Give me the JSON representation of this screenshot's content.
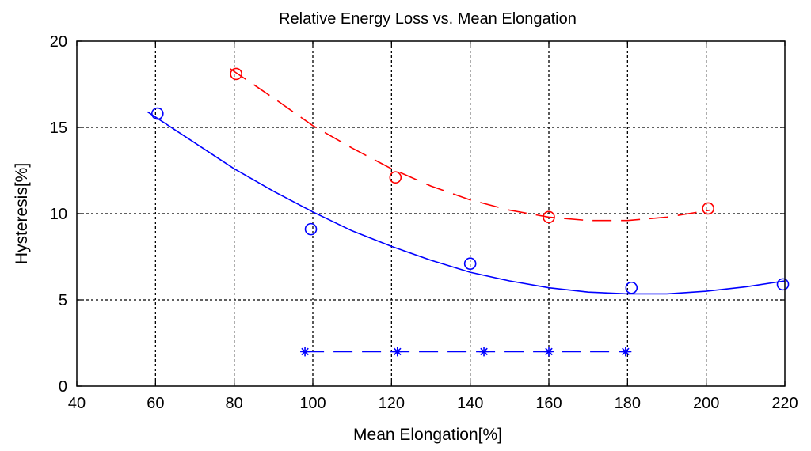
{
  "chart_data": {
    "type": "line",
    "title": "Relative Energy Loss vs. Mean Elongation",
    "xlabel": "Mean Elongation[%]",
    "ylabel": "Hysteresis[%]",
    "xlim": [
      40,
      220
    ],
    "ylim": [
      0,
      20
    ],
    "xticks": [
      40,
      60,
      80,
      100,
      120,
      140,
      160,
      180,
      200,
      220
    ],
    "yticks": [
      0,
      5,
      10,
      15,
      20
    ],
    "grid": true,
    "series": [
      {
        "name": "blue-markers",
        "color": "#0000ff",
        "marker": "circle",
        "points": [
          [
            60.5,
            15.8
          ],
          [
            99.5,
            9.1
          ],
          [
            140,
            7.1
          ],
          [
            181,
            5.7
          ],
          [
            219.5,
            5.9
          ]
        ]
      },
      {
        "name": "blue-fit",
        "color": "#0000ff",
        "style": "solid",
        "points": [
          [
            58,
            15.9
          ],
          [
            70,
            14.1
          ],
          [
            80,
            12.6
          ],
          [
            90,
            11.3
          ],
          [
            100,
            10.1
          ],
          [
            110,
            9.0
          ],
          [
            120,
            8.1
          ],
          [
            130,
            7.3
          ],
          [
            140,
            6.6
          ],
          [
            150,
            6.1
          ],
          [
            160,
            5.7
          ],
          [
            170,
            5.45
          ],
          [
            180,
            5.35
          ],
          [
            190,
            5.35
          ],
          [
            200,
            5.5
          ],
          [
            210,
            5.75
          ],
          [
            220,
            6.1
          ]
        ]
      },
      {
        "name": "red-markers",
        "color": "#ff0000",
        "marker": "circle",
        "points": [
          [
            80.5,
            18.1
          ],
          [
            121,
            12.1
          ],
          [
            160,
            9.8
          ],
          [
            200.5,
            10.3
          ]
        ]
      },
      {
        "name": "red-fit",
        "color": "#ff0000",
        "style": "dashed",
        "points": [
          [
            79,
            18.4
          ],
          [
            90,
            16.7
          ],
          [
            100,
            15.1
          ],
          [
            110,
            13.8
          ],
          [
            120,
            12.6
          ],
          [
            130,
            11.6
          ],
          [
            140,
            10.8
          ],
          [
            150,
            10.2
          ],
          [
            160,
            9.8
          ],
          [
            170,
            9.6
          ],
          [
            180,
            9.6
          ],
          [
            190,
            9.8
          ],
          [
            201,
            10.2
          ]
        ]
      },
      {
        "name": "blue-star-markers",
        "color": "#0000ff",
        "marker": "star",
        "points": [
          [
            98,
            2.0
          ],
          [
            121.5,
            2.0
          ],
          [
            143.5,
            2.0
          ],
          [
            160,
            2.0
          ],
          [
            179.5,
            2.0
          ]
        ]
      },
      {
        "name": "blue-star-line",
        "color": "#0000ff",
        "style": "dashed",
        "points": [
          [
            98,
            2.0
          ],
          [
            181,
            2.0
          ]
        ]
      }
    ]
  }
}
